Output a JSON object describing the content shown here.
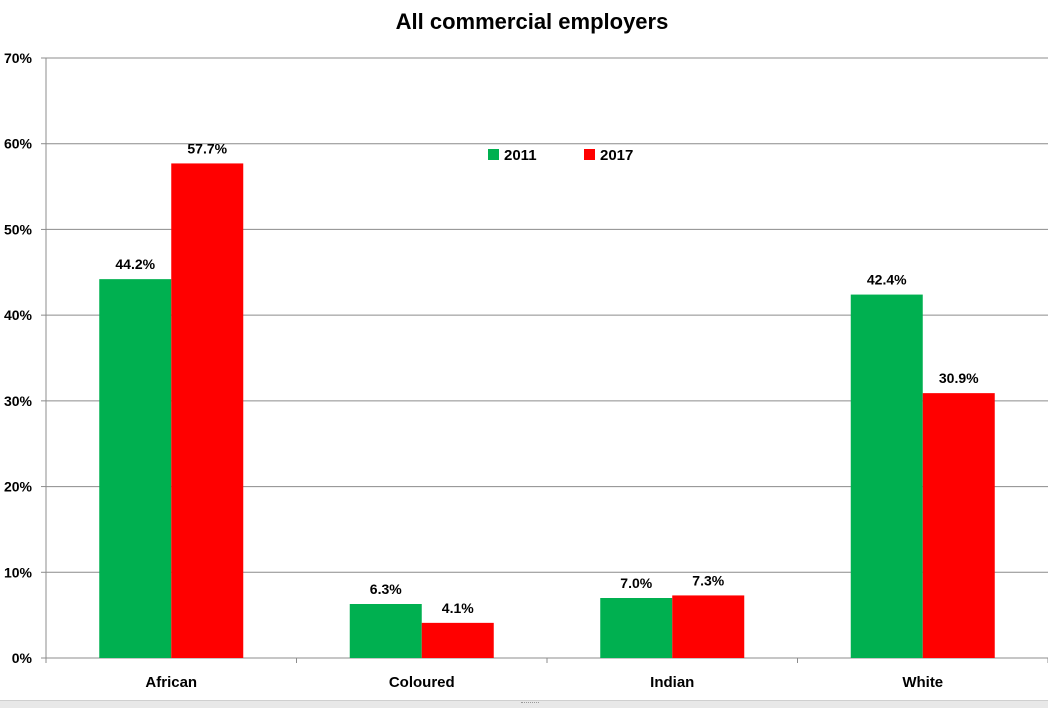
{
  "chart_data": {
    "type": "bar",
    "title": "All commercial employers",
    "categories": [
      "African",
      "Coloured",
      "Indian",
      "White"
    ],
    "series": [
      {
        "name": "2011",
        "color": "#00b050",
        "values": [
          44.2,
          6.3,
          7.0,
          42.4
        ],
        "labels": [
          "44.2%",
          "6.3%",
          "7.0%",
          "42.4%"
        ]
      },
      {
        "name": "2017",
        "color": "#ff0000",
        "values": [
          57.7,
          4.1,
          7.3,
          30.9
        ],
        "labels": [
          "57.7%",
          "4.1%",
          "7.3%",
          "30.9%"
        ]
      }
    ],
    "ylim": [
      0,
      70
    ],
    "yticks": [
      0,
      10,
      20,
      30,
      40,
      50,
      60,
      70
    ],
    "ytick_labels": [
      "0%",
      "10%",
      "20%",
      "30%",
      "40%",
      "50%",
      "60%",
      "70%"
    ],
    "xlabel": "",
    "ylabel": "",
    "grid": true,
    "legend_position": "top-center"
  }
}
